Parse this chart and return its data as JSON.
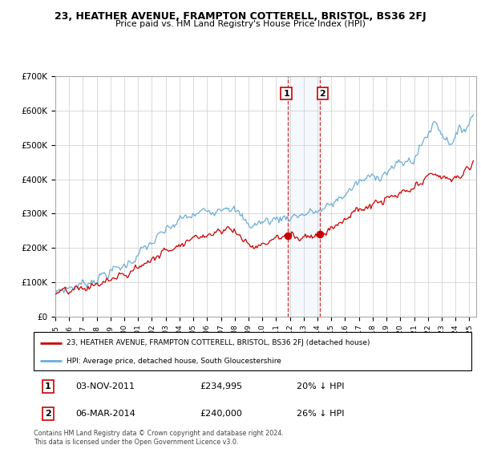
{
  "title": "23, HEATHER AVENUE, FRAMPTON COTTERELL, BRISTOL, BS36 2FJ",
  "subtitle": "Price paid vs. HM Land Registry's House Price Index (HPI)",
  "hpi_label": "HPI: Average price, detached house, South Gloucestershire",
  "price_label": "23, HEATHER AVENUE, FRAMPTON COTTERELL, BRISTOL, BS36 2FJ (detached house)",
  "footnote": "Contains HM Land Registry data © Crown copyright and database right 2024.\nThis data is licensed under the Open Government Licence v3.0.",
  "sale1_date": "03-NOV-2011",
  "sale1_price": "£234,995",
  "sale1_hpi": "20% ↓ HPI",
  "sale2_date": "06-MAR-2014",
  "sale2_price": "£240,000",
  "sale2_hpi": "26% ↓ HPI",
  "sale1_x": 2011.84,
  "sale2_x": 2014.17,
  "ylim": [
    0,
    700000
  ],
  "yticks": [
    0,
    100000,
    200000,
    300000,
    400000,
    500000,
    600000,
    700000
  ],
  "ytick_labels": [
    "£0",
    "£100K",
    "£200K",
    "£300K",
    "£400K",
    "£500K",
    "£600K",
    "£700K"
  ],
  "hpi_color": "#6baed6",
  "price_color": "#cc0000",
  "background_color": "#ffffff",
  "grid_color": "#cccccc",
  "xlim_left": 1995.0,
  "xlim_right": 2025.5
}
